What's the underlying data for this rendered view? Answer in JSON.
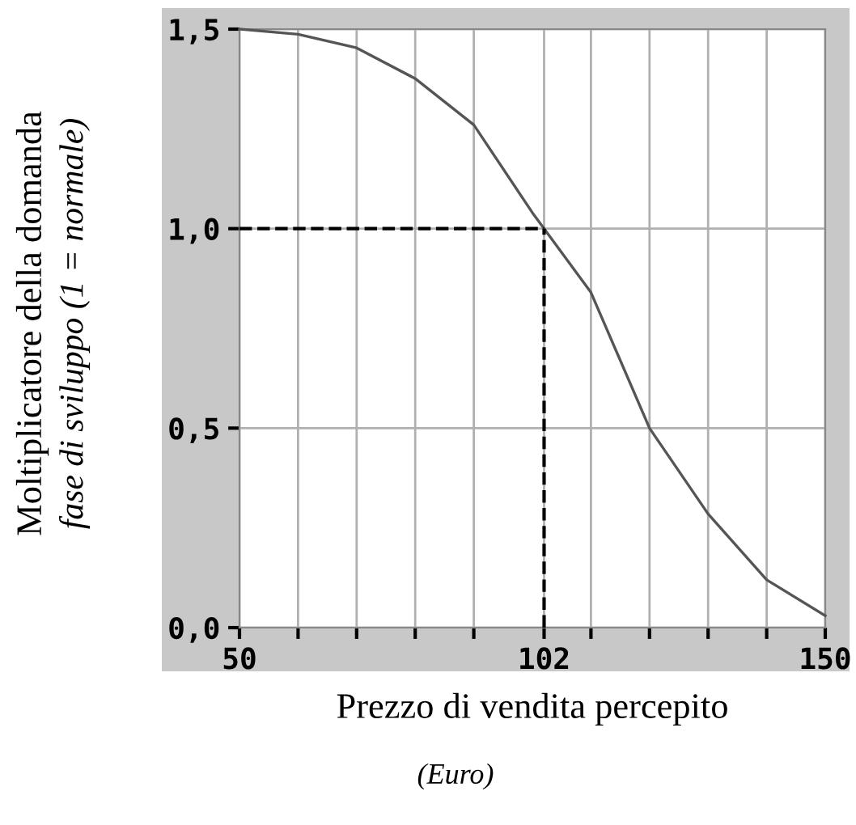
{
  "chart_data": {
    "type": "line",
    "xlabel": "Prezzo di vendita percepito",
    "ylabel": [
      "Moltiplicatore della domanda",
      "fase di sviluppo (1 = normale)"
    ],
    "annotations": [
      "(Euro)"
    ],
    "x": [
      50,
      60,
      70,
      80,
      90,
      100,
      110,
      120,
      130,
      140,
      150
    ],
    "series": [
      {
        "color": "#555555",
        "values": [
          1.5,
          1.487,
          1.453,
          1.376,
          1.26,
          1.04,
          0.84,
          0.5,
          0.285,
          0.12,
          0.03
        ]
      }
    ],
    "ref_lines": [
      {
        "axis": "y",
        "value": 1.0,
        "color": "#000000",
        "line_style": "dashed"
      },
      {
        "axis": "x",
        "value": 102,
        "color": "#000000",
        "line_style": "dashed"
      }
    ],
    "xlim": [
      50,
      150
    ],
    "xticks": [
      50,
      {
        "value": 60,
        "label": null
      },
      {
        "value": 70,
        "label": null
      },
      {
        "value": 80,
        "label": null
      },
      {
        "value": 90,
        "label": null
      },
      102,
      {
        "value": 110,
        "label": null
      },
      {
        "value": 120,
        "label": null
      },
      {
        "value": 130,
        "label": null
      },
      {
        "value": 140,
        "label": null
      },
      150
    ],
    "ylim": [
      0,
      1.5
    ],
    "yticks": [
      {
        "value": 0,
        "label": "0,0"
      },
      {
        "value": 0.5,
        "label": "0,5"
      },
      {
        "value": 1.0,
        "label": "1,0"
      },
      {
        "value": 1.5,
        "label": "1,5"
      }
    ],
    "grid": true,
    "line_style": "solid",
    "marker": "none"
  }
}
